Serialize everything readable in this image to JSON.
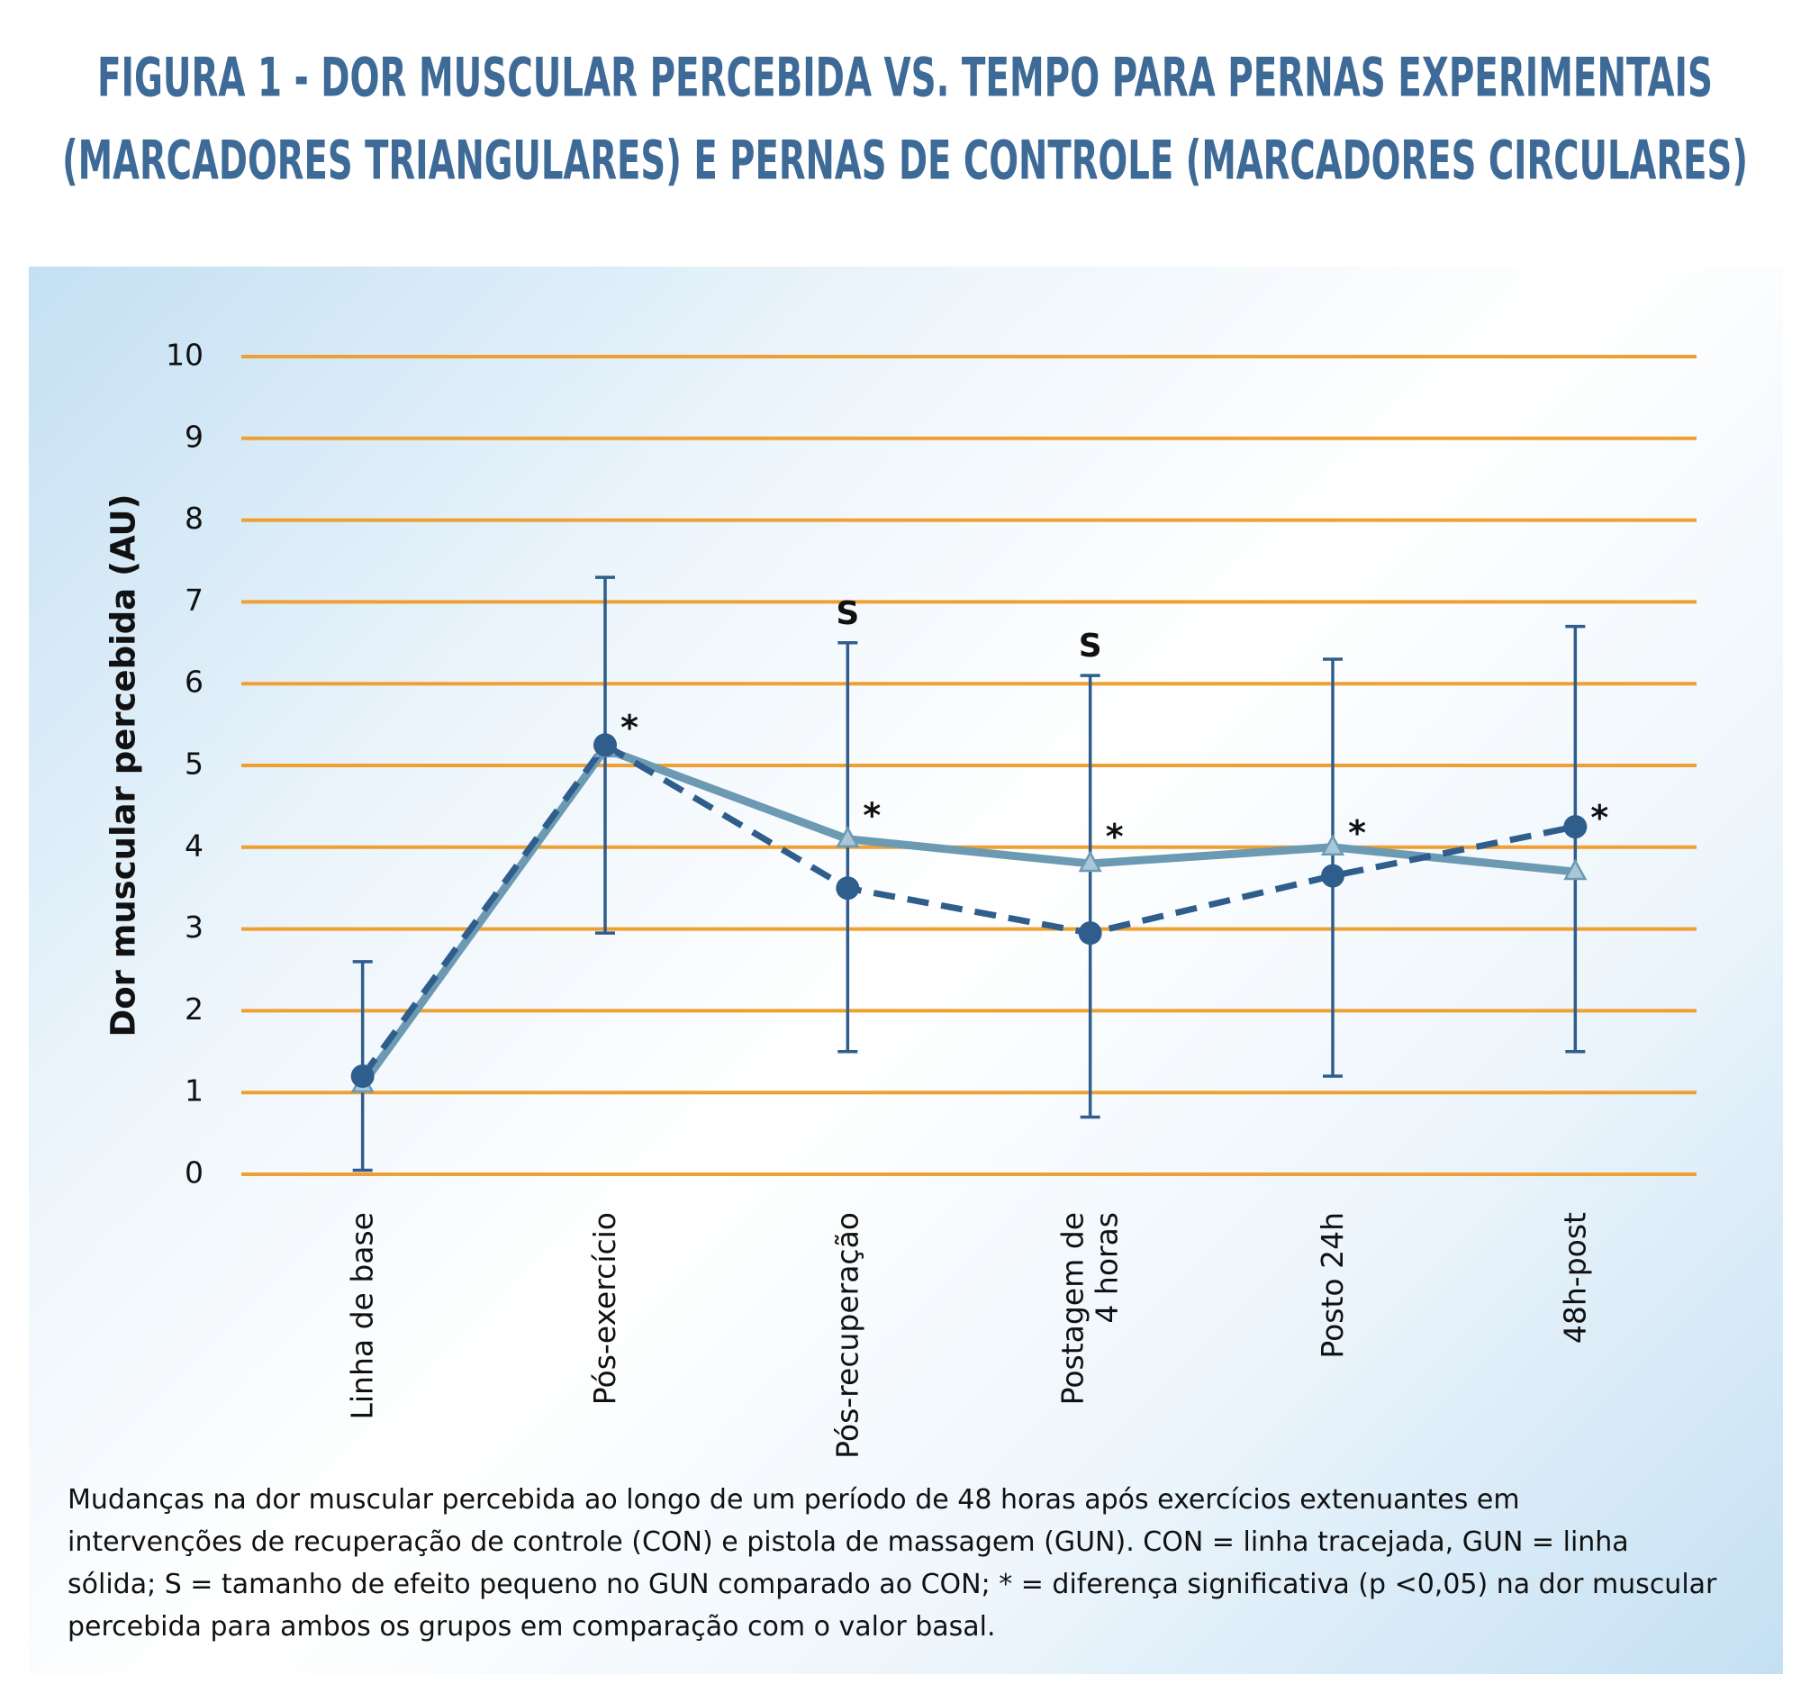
{
  "chart_data": {
    "type": "line",
    "title": [
      "FIGURA 1 - DOR MUSCULAR PERCEBIDA VS. TEMPO PARA PERNAS EXPERIMENTAIS",
      "(MARCADORES TRIANGULARES) E PERNAS DE CONTROLE (MARCADORES CIRCULARES)"
    ],
    "y_label": "Dor muscular percebida (AU)",
    "categories": [
      "Linha de base",
      "Pós-exercício",
      "Pós-recuperação",
      "Postagem de\n4 horas",
      "Posto 24h",
      "48h-post"
    ],
    "series": [
      {
        "color": "#6b9ab2",
        "line_style": "solid",
        "marker": "triangle",
        "values": [
          1.1,
          5.2,
          4.1,
          3.8,
          4.0,
          3.7
        ]
      },
      {
        "color": "#2f5d8c",
        "line_style": "dashed",
        "marker": "circle",
        "values": [
          1.2,
          5.25,
          3.5,
          2.95,
          3.65,
          4.25
        ]
      }
    ],
    "error_low": [
      0.05,
      2.95,
      1.5,
      0.7,
      1.2,
      1.5
    ],
    "error_high": [
      2.6,
      7.3,
      6.5,
      6.1,
      6.3,
      6.7
    ],
    "error_color": "#2f5d8c",
    "annotations": [
      {
        "text": "*",
        "x": "Pós-exercício",
        "y": 5.5
      },
      {
        "text": "*",
        "x": "Pós-recuperação",
        "y": 4.43
      },
      {
        "text": "*",
        "x": "Postagem de\n4 horas",
        "y": 4.17
      },
      {
        "text": "*",
        "x": "Posto 24h",
        "y": 4.21
      },
      {
        "text": "*",
        "x": "48h-post",
        "y": 4.4
      },
      {
        "text": "S",
        "x": "Pós-recuperação",
        "y": 6.84
      },
      {
        "text": "S",
        "x": "Postagem de\n4 horas",
        "y": 6.44
      }
    ],
    "ylim": [
      0,
      10
    ],
    "yticks": [
      0,
      1,
      2,
      3,
      4,
      5,
      6,
      7,
      8,
      9,
      10
    ],
    "grid": true,
    "grid_color": "#f0a030",
    "caption": [
      "Mudanças na dor muscular percebida ao longo de um período de 48 horas após exercícios extenuantes em",
      "intervenções de recuperação de controle (CON) e pistola de massagem (GUN). CON = linha tracejada, GUN = linha",
      "sólida; S = tamanho de efeito pequeno no GUN comparado ao CON; * = diferença significativa (p <0,05) na dor muscular",
      "percebida para ambos os grupos em comparação com o valor basal."
    ]
  }
}
